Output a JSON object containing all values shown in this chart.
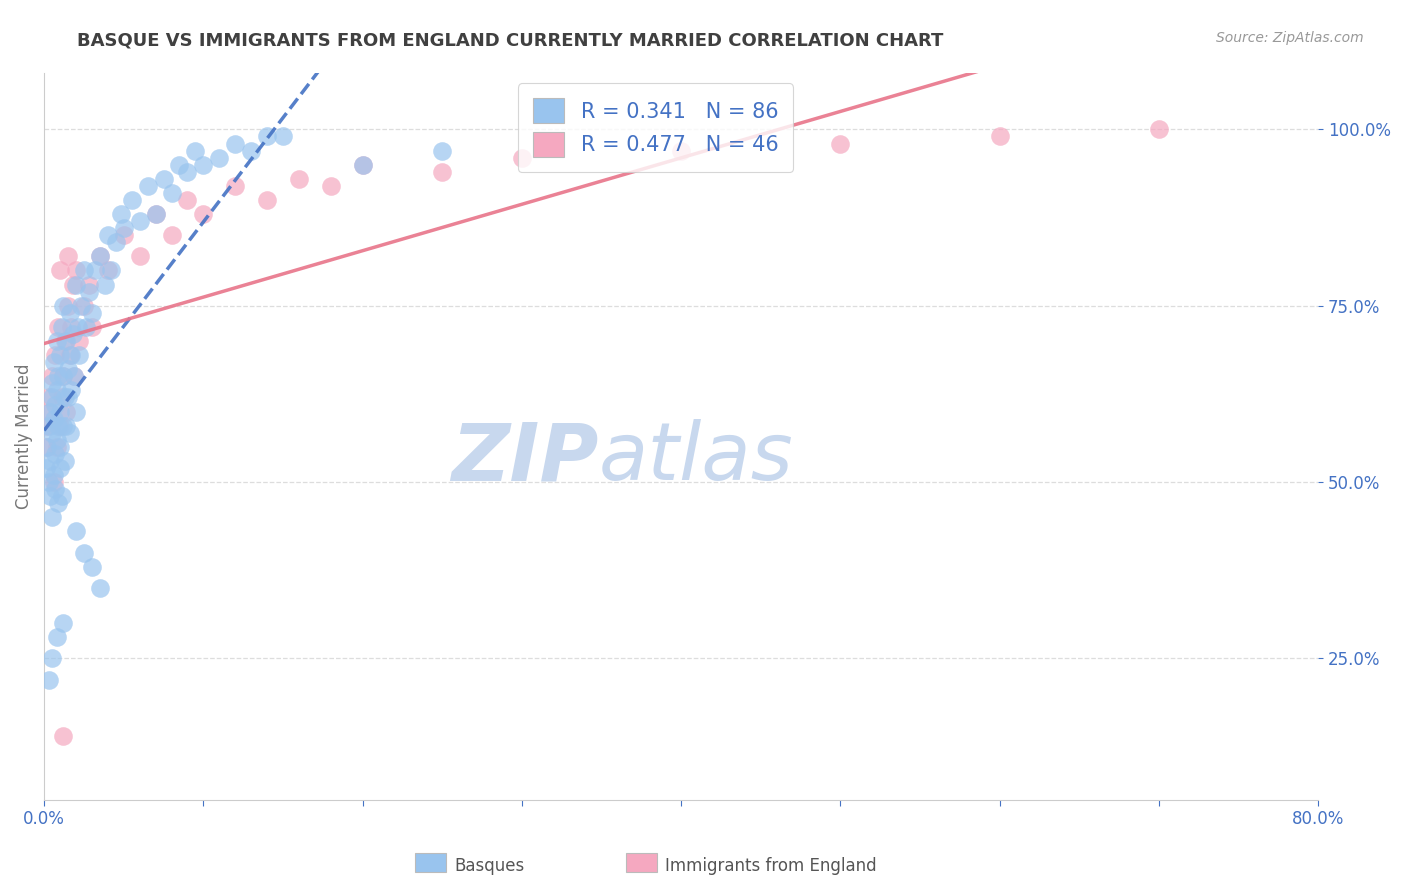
{
  "title": "BASQUE VS IMMIGRANTS FROM ENGLAND CURRENTLY MARRIED CORRELATION CHART",
  "source": "Source: ZipAtlas.com",
  "ylabel": "Currently Married",
  "R1": 0.341,
  "N1": 86,
  "R2": 0.477,
  "N2": 46,
  "color1": "#99C4EE",
  "color2": "#F5A8C0",
  "line_color1": "#4472C4",
  "line_color2": "#E8748A",
  "title_color": "#404040",
  "axis_color": "#4472C4",
  "watermark_zip_color": "#C8D8EE",
  "watermark_atlas_color": "#C8D8EE",
  "background_color": "#FFFFFF",
  "grid_color": "#DDDDDD",
  "xmin": 0.0,
  "xmax": 0.8,
  "ymin": 0.05,
  "ymax": 1.08,
  "ytick_vals": [
    0.25,
    0.5,
    0.75,
    1.0
  ],
  "ytick_labels": [
    "25.0%",
    "50.0%",
    "75.0%",
    "100.0%"
  ],
  "xtick_vals": [
    0.0,
    0.1,
    0.2,
    0.3,
    0.4,
    0.5,
    0.6,
    0.7,
    0.8
  ],
  "xtick_labels": [
    "0.0%",
    "",
    "",
    "",
    "",
    "",
    "",
    "",
    "80.0%"
  ],
  "legend_label1": "Basques",
  "legend_label2": "Immigrants from England",
  "basques_x": [
    0.001,
    0.002,
    0.003,
    0.003,
    0.004,
    0.004,
    0.004,
    0.005,
    0.005,
    0.005,
    0.005,
    0.006,
    0.006,
    0.006,
    0.007,
    0.007,
    0.007,
    0.008,
    0.008,
    0.008,
    0.009,
    0.009,
    0.009,
    0.01,
    0.01,
    0.01,
    0.01,
    0.011,
    0.011,
    0.012,
    0.012,
    0.012,
    0.013,
    0.013,
    0.014,
    0.014,
    0.015,
    0.015,
    0.016,
    0.016,
    0.017,
    0.017,
    0.018,
    0.019,
    0.02,
    0.02,
    0.021,
    0.022,
    0.023,
    0.025,
    0.026,
    0.028,
    0.03,
    0.032,
    0.035,
    0.038,
    0.04,
    0.042,
    0.045,
    0.048,
    0.05,
    0.055,
    0.06,
    0.065,
    0.07,
    0.075,
    0.08,
    0.085,
    0.09,
    0.095,
    0.1,
    0.11,
    0.12,
    0.13,
    0.14,
    0.15,
    0.2,
    0.25,
    0.02,
    0.025,
    0.03,
    0.035,
    0.012,
    0.008,
    0.005,
    0.003
  ],
  "basques_y": [
    0.52,
    0.55,
    0.5,
    0.58,
    0.6,
    0.53,
    0.48,
    0.62,
    0.45,
    0.57,
    0.64,
    0.51,
    0.59,
    0.67,
    0.54,
    0.61,
    0.49,
    0.63,
    0.56,
    0.7,
    0.58,
    0.65,
    0.47,
    0.6,
    0.55,
    0.68,
    0.52,
    0.72,
    0.48,
    0.65,
    0.58,
    0.75,
    0.62,
    0.53,
    0.7,
    0.58,
    0.66,
    0.62,
    0.74,
    0.57,
    0.68,
    0.63,
    0.71,
    0.65,
    0.78,
    0.6,
    0.72,
    0.68,
    0.75,
    0.8,
    0.72,
    0.77,
    0.74,
    0.8,
    0.82,
    0.78,
    0.85,
    0.8,
    0.84,
    0.88,
    0.86,
    0.9,
    0.87,
    0.92,
    0.88,
    0.93,
    0.91,
    0.95,
    0.94,
    0.97,
    0.95,
    0.96,
    0.98,
    0.97,
    0.99,
    0.99,
    0.95,
    0.97,
    0.43,
    0.4,
    0.38,
    0.35,
    0.3,
    0.28,
    0.25,
    0.22
  ],
  "england_x": [
    0.001,
    0.002,
    0.003,
    0.004,
    0.005,
    0.006,
    0.007,
    0.008,
    0.009,
    0.01,
    0.011,
    0.012,
    0.013,
    0.014,
    0.015,
    0.016,
    0.017,
    0.018,
    0.019,
    0.02,
    0.022,
    0.025,
    0.028,
    0.03,
    0.035,
    0.04,
    0.05,
    0.06,
    0.07,
    0.08,
    0.09,
    0.1,
    0.12,
    0.14,
    0.16,
    0.18,
    0.2,
    0.25,
    0.3,
    0.4,
    0.5,
    0.6,
    0.7,
    0.01,
    0.015,
    0.012
  ],
  "england_y": [
    0.58,
    0.55,
    0.62,
    0.6,
    0.65,
    0.5,
    0.68,
    0.55,
    0.72,
    0.58,
    0.62,
    0.65,
    0.7,
    0.6,
    0.75,
    0.68,
    0.72,
    0.78,
    0.65,
    0.8,
    0.7,
    0.75,
    0.78,
    0.72,
    0.82,
    0.8,
    0.85,
    0.82,
    0.88,
    0.85,
    0.9,
    0.88,
    0.92,
    0.9,
    0.93,
    0.92,
    0.95,
    0.94,
    0.96,
    0.97,
    0.98,
    0.99,
    1.0,
    0.8,
    0.82,
    0.14
  ]
}
